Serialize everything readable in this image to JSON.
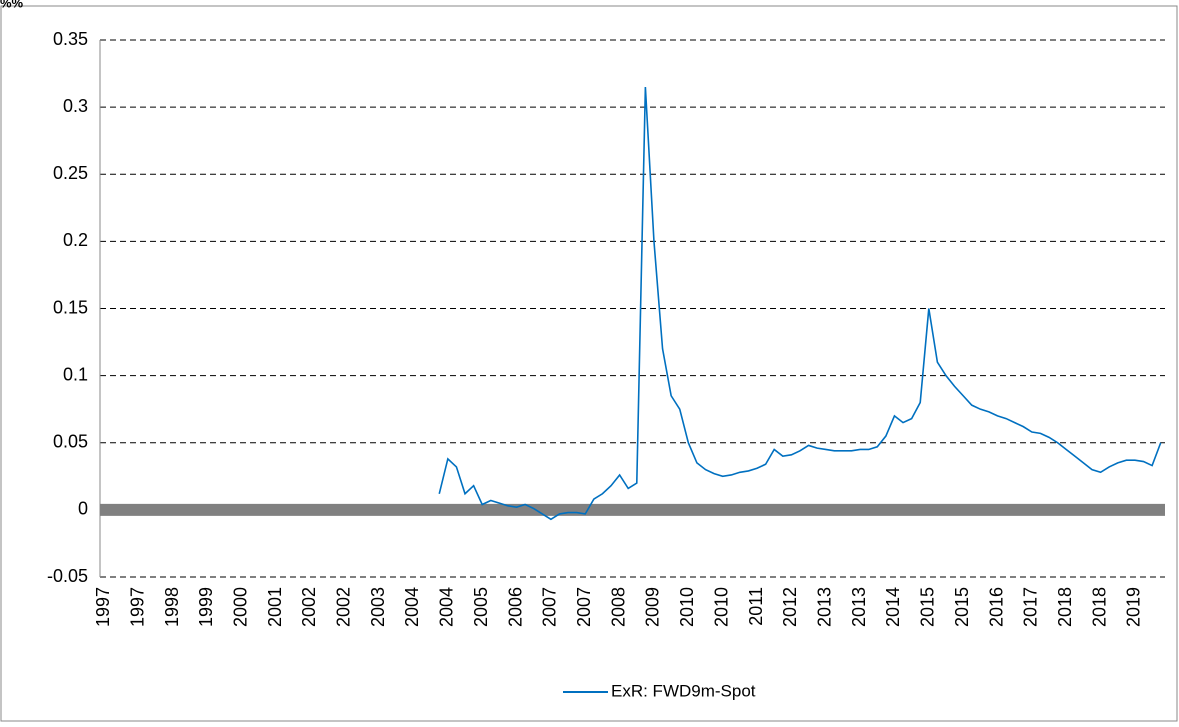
{
  "chart_data": {
    "type": "line",
    "y_label": "%%",
    "categories": [
      "1997",
      null,
      null,
      null,
      "1997",
      null,
      null,
      null,
      "1998",
      null,
      null,
      null,
      "1999",
      null,
      null,
      null,
      "2000",
      null,
      null,
      null,
      "2001",
      null,
      null,
      null,
      "2002",
      null,
      null,
      null,
      "2002",
      null,
      null,
      null,
      "2003",
      null,
      null,
      null,
      "2004",
      null,
      null,
      null,
      "2004",
      null,
      null,
      null,
      "2005",
      null,
      null,
      null,
      "2006",
      null,
      null,
      null,
      "2007",
      null,
      null,
      null,
      "2007",
      null,
      null,
      null,
      "2008",
      null,
      null,
      null,
      "2009",
      null,
      null,
      null,
      "2010",
      null,
      null,
      null,
      "2010",
      null,
      null,
      null,
      "2011",
      null,
      null,
      null,
      "2012",
      null,
      null,
      null,
      "2013",
      null,
      null,
      null,
      "2013",
      null,
      null,
      null,
      "2014",
      null,
      null,
      null,
      "2015",
      null,
      null,
      null,
      "2015",
      null,
      null,
      null,
      "2016",
      null,
      null,
      null,
      "2017",
      null,
      null,
      null,
      "2018",
      null,
      null,
      null,
      "2018",
      null,
      null,
      null,
      "2019",
      null,
      null,
      null
    ],
    "series": [
      {
        "name": "ExR: FWD9m-Spot",
        "color": "#0070c0",
        "values": [
          null,
          null,
          null,
          null,
          null,
          null,
          null,
          null,
          null,
          null,
          null,
          null,
          null,
          null,
          null,
          null,
          null,
          null,
          null,
          null,
          null,
          null,
          null,
          null,
          null,
          null,
          null,
          null,
          null,
          null,
          null,
          null,
          null,
          null,
          null,
          null,
          null,
          null,
          null,
          0.012,
          0.038,
          0.032,
          0.012,
          0.018,
          0.004,
          0.007,
          0.005,
          0.003,
          0.002,
          0.004,
          0.001,
          -0.003,
          -0.007,
          -0.003,
          -0.002,
          -0.002,
          -0.003,
          0.008,
          0.012,
          0.018,
          0.026,
          0.016,
          0.02,
          0.315,
          0.2,
          0.12,
          0.085,
          0.075,
          0.05,
          0.035,
          0.03,
          0.027,
          0.025,
          0.026,
          0.028,
          0.029,
          0.031,
          0.034,
          0.045,
          0.04,
          0.041,
          0.044,
          0.048,
          0.046,
          0.045,
          0.044,
          0.044,
          0.044,
          0.045,
          0.045,
          0.047,
          0.055,
          0.07,
          0.065,
          0.068,
          0.08,
          0.15,
          0.11,
          0.1,
          0.092,
          0.085,
          0.078,
          0.075,
          0.073,
          0.07,
          0.068,
          0.065,
          0.062,
          0.058,
          0.057,
          0.054,
          0.05,
          0.045,
          0.04,
          0.035,
          0.03,
          0.028,
          0.032,
          0.035,
          0.037,
          0.037,
          0.036,
          0.033,
          0.05
        ]
      }
    ],
    "ylim": [
      -0.05,
      0.35
    ],
    "yticks": [
      -0.05,
      0,
      0.05,
      0.1,
      0.15,
      0.2,
      0.25,
      0.3,
      0.35
    ],
    "grid": true
  }
}
